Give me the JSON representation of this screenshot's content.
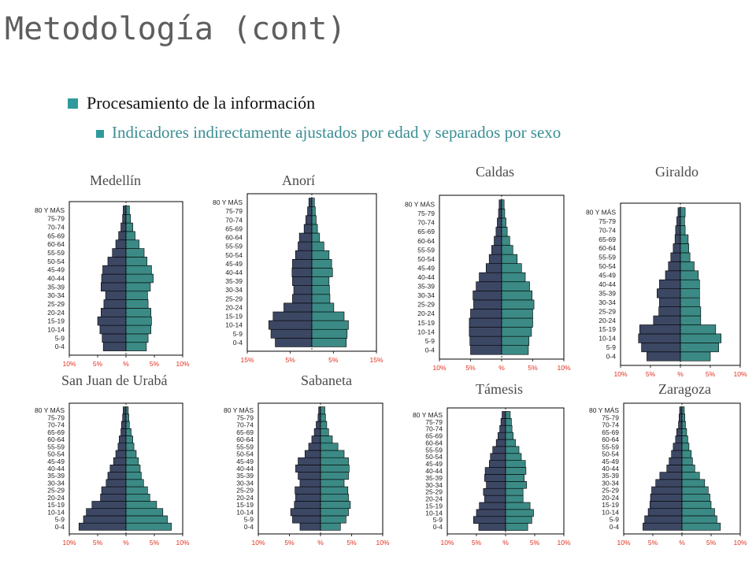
{
  "slide": {
    "title": "Metodología (cont)",
    "bullet1": "Procesamiento de la información",
    "bullet2": "Indicadores indirectamente ajustados por edad y separados por sexo"
  },
  "colors": {
    "male": "#3c4763",
    "female": "#3b8a85",
    "bullet": "#2f9a9c",
    "tick": "#e0301e"
  },
  "age_groups": [
    "0-4",
    "5-9",
    "10-14",
    "15-19",
    "20-24",
    "25-29",
    "30-34",
    "35-39",
    "40-44",
    "45-49",
    "50-54",
    "55-59",
    "60-64",
    "65-69",
    "70-74",
    "75-79",
    "80 Y MÁS"
  ],
  "chart_data": [
    {
      "type": "bar",
      "title": "Medellín",
      "ticks": [
        "10%",
        "5%",
        "%",
        "5%",
        "10%"
      ],
      "max": 10,
      "male": [
        4,
        4.2,
        4.6,
        5,
        4.4,
        3.9,
        3.6,
        4.4,
        4.3,
        4.1,
        3.2,
        2.4,
        1.8,
        1.3,
        0.9,
        0.6,
        0.5
      ],
      "female": [
        3.6,
        3.9,
        4.4,
        4.5,
        4.4,
        3.9,
        3.8,
        4.3,
        4.8,
        4.5,
        3.7,
        3.2,
        2.3,
        1.6,
        1.2,
        0.8,
        0.6
      ]
    },
    {
      "type": "bar",
      "title": "Anorí",
      "ticks": [
        "15%",
        "5%",
        "5%",
        "15%"
      ],
      "max": 15,
      "male": [
        8.5,
        9.5,
        10,
        9,
        6.5,
        4.5,
        4.2,
        4.5,
        4.6,
        4.5,
        3.8,
        3.2,
        2.9,
        1.8,
        1.4,
        1,
        0.7
      ],
      "female": [
        8,
        8.2,
        8.5,
        7.5,
        5.1,
        4.2,
        4.1,
        4,
        4.8,
        4.6,
        4,
        2.8,
        1.8,
        1.3,
        1,
        0.8,
        0.6
      ]
    },
    {
      "type": "bar",
      "title": "Caldas",
      "ticks": [
        "10%",
        "5%",
        "%",
        "5%",
        "10%"
      ],
      "max": 10,
      "male": [
        5,
        5.1,
        5.2,
        5.2,
        5,
        4.5,
        4.6,
        4.1,
        3.6,
        2.5,
        2,
        1.6,
        1.2,
        0.9,
        0.7,
        0.5,
        0.4
      ],
      "female": [
        4.3,
        4.4,
        4.8,
        5,
        5,
        5.2,
        4.9,
        4.5,
        3.8,
        3.2,
        2.5,
        1.8,
        1.3,
        0.9,
        0.7,
        0.5,
        0.4
      ]
    },
    {
      "type": "bar",
      "title": "Giraldo",
      "ticks": [
        "10%",
        "5%",
        "%",
        "5%",
        "10%"
      ],
      "max": 10,
      "male": [
        5.6,
        6.5,
        7,
        6.8,
        4.5,
        3.6,
        3.5,
        3.9,
        3.5,
        2.5,
        2,
        1.6,
        1.2,
        0.9,
        0.8,
        0.6,
        0.4
      ],
      "female": [
        5,
        6.4,
        6.8,
        5.9,
        3.4,
        3.4,
        3.2,
        3.2,
        3.2,
        3,
        2.3,
        1.6,
        1.4,
        1.3,
        0.8,
        0.7,
        0.8
      ]
    },
    {
      "type": "bar",
      "title": "San Juan de Urabá",
      "ticks": [
        "10%",
        "5%",
        "%",
        "5%",
        "10%"
      ],
      "max": 10,
      "male": [
        8.3,
        7.5,
        7,
        6,
        4.5,
        4.3,
        3.5,
        3.2,
        2.8,
        2.2,
        1.8,
        1.4,
        1.2,
        0.9,
        0.8,
        0.6,
        0.5
      ],
      "female": [
        8,
        7.3,
        6.5,
        5.4,
        4.2,
        3.8,
        3.1,
        2.7,
        2.5,
        2.2,
        1.8,
        1.4,
        1.2,
        0.9,
        0.6,
        0.5,
        0.4
      ]
    },
    {
      "type": "bar",
      "title": "Sabaneta",
      "ticks": [
        "10%",
        "5%",
        "%",
        "5%",
        "10%"
      ],
      "max": 10,
      "male": [
        3.3,
        4.5,
        4.8,
        4.2,
        4,
        4.1,
        3.3,
        3.6,
        4,
        3.6,
        2.5,
        1.9,
        1.4,
        1,
        0.7,
        0.4,
        0.3
      ],
      "female": [
        3.2,
        4.1,
        4.5,
        4.8,
        4.5,
        4.4,
        3.8,
        4.5,
        4.6,
        4.5,
        3.8,
        2.8,
        1.9,
        1.3,
        1,
        0.8,
        0.7
      ]
    },
    {
      "type": "bar",
      "title": "Támesis",
      "ticks": [
        "10%",
        "5%",
        "%",
        "5%",
        "10%"
      ],
      "max": 10,
      "male": [
        4.6,
        5.5,
        5,
        4.5,
        3.6,
        3.8,
        3.3,
        3.6,
        3.5,
        2.8,
        2.6,
        2.2,
        1.6,
        1.3,
        1,
        0.8,
        0.6
      ],
      "female": [
        3.8,
        4.5,
        4.8,
        4.2,
        3,
        3,
        3.6,
        3.2,
        3.5,
        3.4,
        2.7,
        2.3,
        1.7,
        1.3,
        1.1,
        1,
        0.8
      ]
    },
    {
      "type": "bar",
      "title": "Zaragoza",
      "ticks": [
        "10%",
        "5%",
        "%",
        "5%",
        "10%"
      ],
      "max": 10,
      "male": [
        6.7,
        6.4,
        5.8,
        5.5,
        5.4,
        5.2,
        4.5,
        3.8,
        2.6,
        2.2,
        1.8,
        1.5,
        1.1,
        0.9,
        0.6,
        0.5,
        0.4
      ],
      "female": [
        6.6,
        6,
        5.6,
        5,
        4.8,
        4.5,
        3.9,
        3,
        2.2,
        1.8,
        1.6,
        1.2,
        1,
        0.8,
        0.6,
        0.5,
        0.4
      ]
    }
  ]
}
